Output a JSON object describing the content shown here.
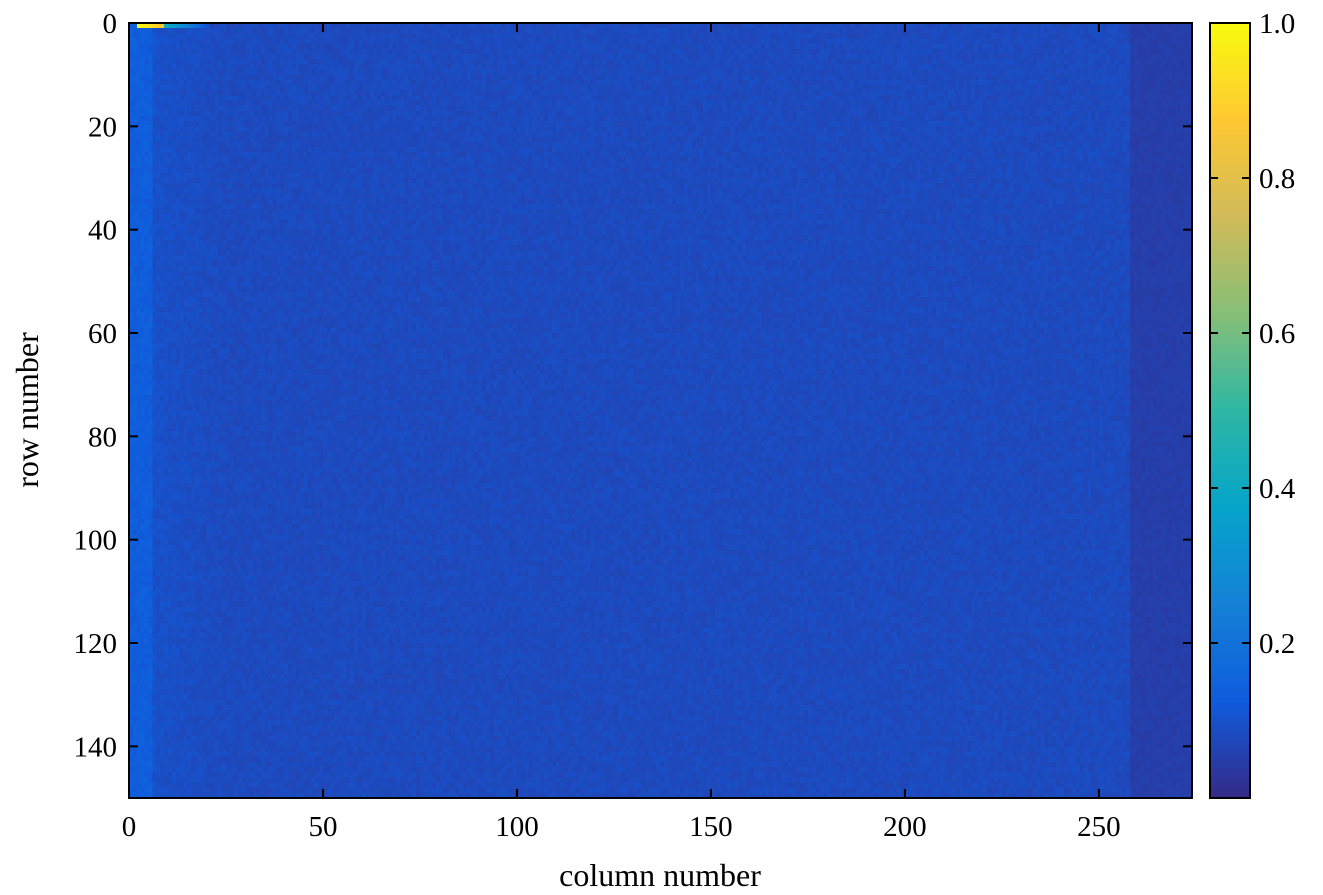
{
  "chart_data": {
    "type": "heatmap",
    "title": "",
    "xlabel": "column number",
    "ylabel": "row number",
    "xlim": [
      0,
      274
    ],
    "ylim": [
      150,
      0
    ],
    "x_ticks": [
      0,
      50,
      100,
      150,
      200,
      250
    ],
    "y_ticks": [
      0,
      20,
      40,
      60,
      80,
      100,
      120,
      140
    ],
    "n_rows": 150,
    "n_cols": 274,
    "colormap": "parula",
    "colormap_stops": [
      "#352a87",
      "#0f5cdd",
      "#1481d6",
      "#06a4ca",
      "#2eb7a4",
      "#87bf77",
      "#d1bb59",
      "#fec832",
      "#f9fb0e"
    ],
    "value_range": [
      0.0,
      1.0
    ],
    "description_values": {
      "background_level": 0.08,
      "left_edge_level": 0.13,
      "dark_band_cols": [
        258,
        274
      ],
      "dark_band_level": 0.05,
      "hotspot_row": 0,
      "hotspot_cols": [
        2,
        8
      ],
      "hotspot_peak": 1.0
    },
    "colorbar": {
      "range": [
        0.0,
        1.0
      ],
      "ticks": [
        0.2,
        0.4,
        0.6,
        0.8,
        1.0
      ],
      "tick_labels": [
        "0.2",
        "0.4",
        "0.6",
        "0.8",
        "1.0"
      ]
    }
  }
}
